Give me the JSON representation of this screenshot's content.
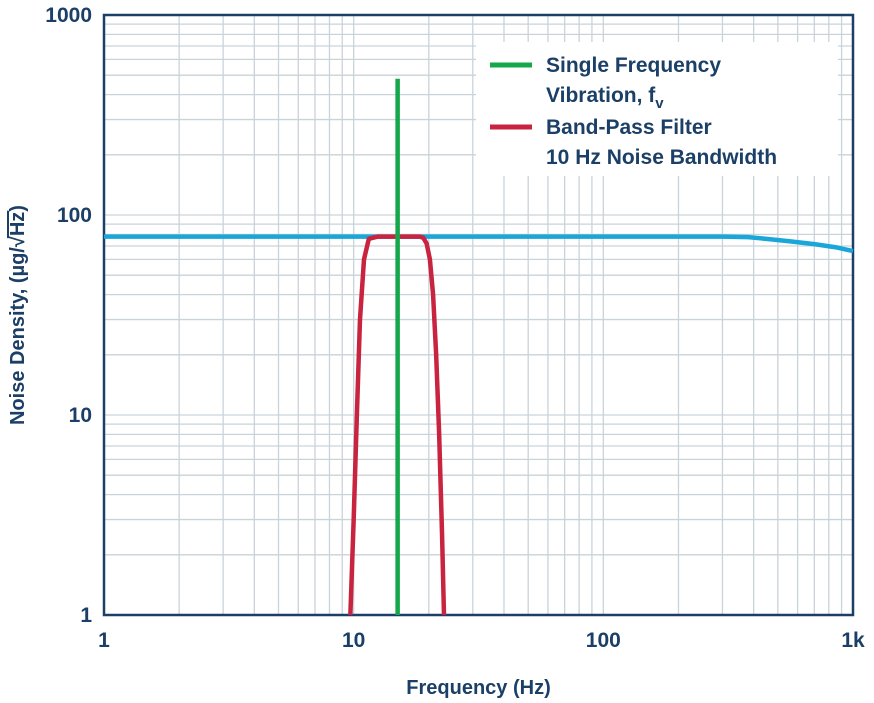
{
  "chart_data": {
    "type": "line",
    "xlabel": "Frequency (Hz)",
    "ylabel_prefix": "Noise Density, (µg/",
    "ylabel_radicand": "Hz",
    "ylabel_suffix": ")",
    "x_scale": "log",
    "y_scale": "log",
    "xlim": [
      1,
      1000
    ],
    "ylim": [
      1,
      1000
    ],
    "x_ticks": [
      {
        "value": 1,
        "label": "1"
      },
      {
        "value": 10,
        "label": "10"
      },
      {
        "value": 100,
        "label": "100"
      },
      {
        "value": 1000,
        "label": "1k"
      }
    ],
    "y_ticks": [
      {
        "value": 1,
        "label": "1"
      },
      {
        "value": 10,
        "label": "10"
      },
      {
        "value": 100,
        "label": "100"
      },
      {
        "value": 1000,
        "label": "1000"
      }
    ],
    "grid": true,
    "legend_position": "top-right",
    "series": [
      {
        "key": "noise_floor",
        "color": "#1aa6d8",
        "x": [
          1,
          10,
          100,
          300,
          380,
          450,
          550,
          700,
          850,
          1000
        ],
        "y": [
          78,
          78,
          78,
          78,
          77.5,
          76,
          74,
          71.5,
          69,
          66
        ]
      },
      {
        "key": "bandpass",
        "name_line1": "Band-Pass Filter",
        "name_line2": "10 Hz Noise Bandwidth",
        "color": "#c8233f",
        "x": [
          9.7,
          10.0,
          10.3,
          10.6,
          11.0,
          11.5,
          12.5,
          14.0,
          16.0,
          18.3,
          19.0,
          19.6,
          20.2,
          20.8,
          21.4,
          22.0,
          22.6,
          23.0
        ],
        "y": [
          1,
          3,
          10,
          30,
          60,
          76,
          78,
          78,
          78,
          78,
          77,
          72,
          60,
          40,
          20,
          8,
          2.5,
          1
        ]
      },
      {
        "key": "single_freq",
        "name_line1": "Single Frequency",
        "name_line2": "Vibration, f",
        "name_subscript": "v",
        "color": "#15a84a",
        "x": [
          15,
          15
        ],
        "y": [
          1,
          480
        ]
      }
    ]
  }
}
